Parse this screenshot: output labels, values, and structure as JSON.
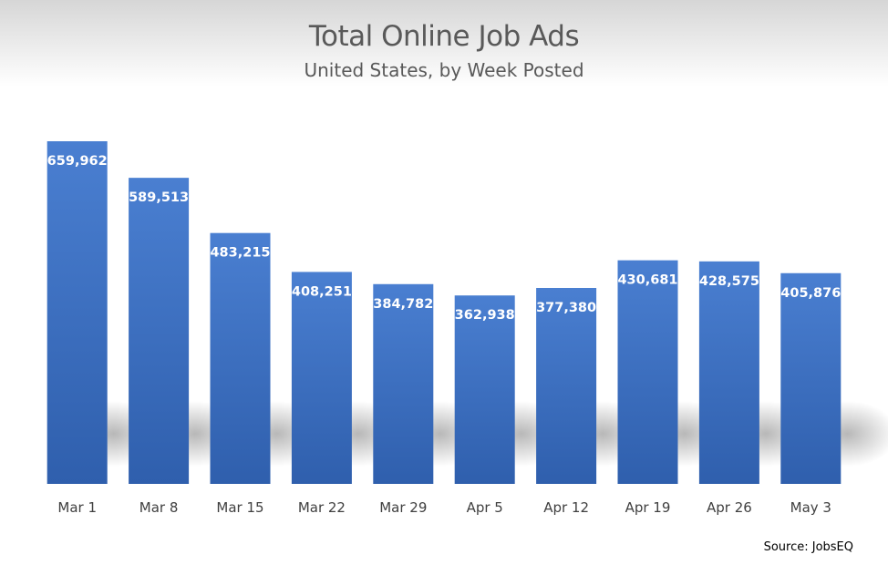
{
  "chart_data": {
    "type": "bar",
    "title": "Total Online Job Ads",
    "subtitle": "United States, by Week Posted",
    "xlabel": "",
    "ylabel": "",
    "ylim": [
      0,
      700000
    ],
    "grid": false,
    "legend": "none",
    "categories": [
      "Mar 1",
      "Mar 8",
      "Mar 15",
      "Mar 22",
      "Mar 29",
      "Apr 5",
      "Apr 12",
      "Apr 19",
      "Apr 26",
      "May 3"
    ],
    "values": [
      659962,
      589513,
      483215,
      408251,
      384782,
      362938,
      377380,
      430681,
      428575,
      405876
    ],
    "value_labels": [
      "659,962",
      "589,513",
      "483,215",
      "408,251",
      "384,782",
      "362,938",
      "377,380",
      "430,681",
      "428,575",
      "405,876"
    ],
    "source": "Source: JobsEQ",
    "colors": {
      "bar_top": "#4a7fd1",
      "bar_bottom": "#2f5fad",
      "label": "#ffffff"
    }
  }
}
